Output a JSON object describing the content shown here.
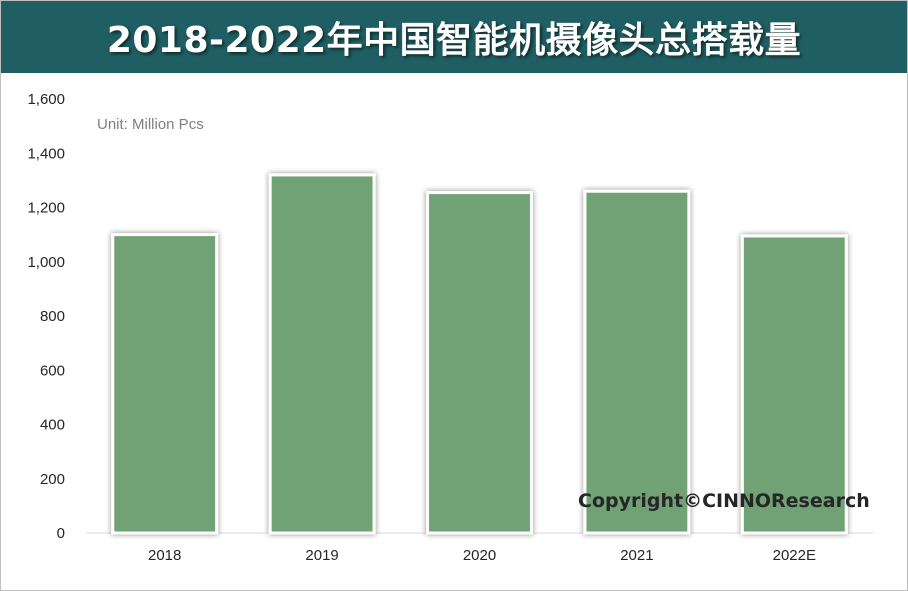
{
  "title": "2018-2022年中国智能机摄像头总搭载量",
  "unit_text": "Unit:  Million Pcs",
  "copyright": "Copyright©CINNOResearch",
  "colors": {
    "title_bar": "#1f5f63",
    "bar_fill": "#70a275",
    "axis": "#d9d9d9"
  },
  "chart_data": {
    "type": "bar",
    "title": "2018-2022年中国智能机摄像头总搭载量",
    "categories": [
      "2018",
      "2019",
      "2020",
      "2021",
      "2022E"
    ],
    "values": [
      1100,
      1320,
      1255,
      1260,
      1095
    ],
    "ylim": [
      0,
      1600
    ],
    "yticks": [
      0,
      200,
      400,
      600,
      800,
      1000,
      1200,
      1400,
      1600
    ],
    "ytick_labels": [
      "0",
      "200",
      "400",
      "600",
      "800",
      "1,000",
      "1,200",
      "1,400",
      "1,600"
    ],
    "xlabel": "",
    "ylabel": "",
    "grid": false,
    "legend": "none"
  }
}
